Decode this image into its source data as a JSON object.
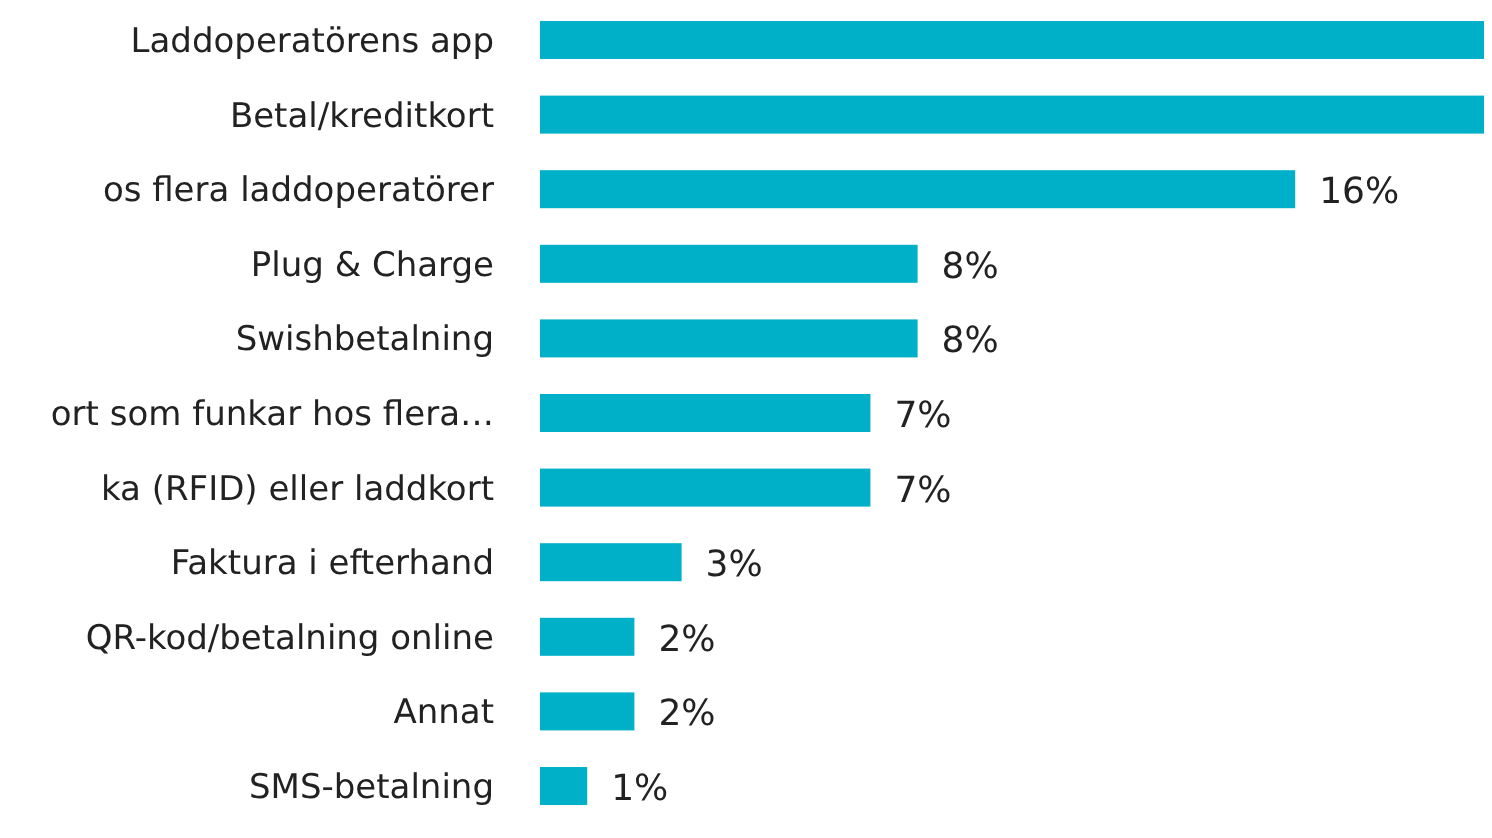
{
  "chart_data": {
    "type": "bar",
    "orientation": "horizontal",
    "relative": false,
    "categories": [
      "Laddoperatörens app",
      "Betal/kreditkort",
      "os flera laddoperatörer",
      "Plug & Charge",
      "Swishbetalning",
      "ort som funkar hos flera…",
      "ka (RFID) eller laddkort",
      "Faktura i efterhand",
      "QR-kod/betalning online",
      "Annat",
      "SMS-betalning"
    ],
    "values": [
      20,
      20,
      16,
      8,
      8,
      7,
      7,
      3,
      2,
      2,
      1
    ],
    "value_labels": [
      null,
      null,
      "16%",
      "8%",
      "8%",
      "7%",
      "7%",
      "3%",
      "2%",
      "2%",
      "1%"
    ],
    "color": "#00b0c8"
  }
}
